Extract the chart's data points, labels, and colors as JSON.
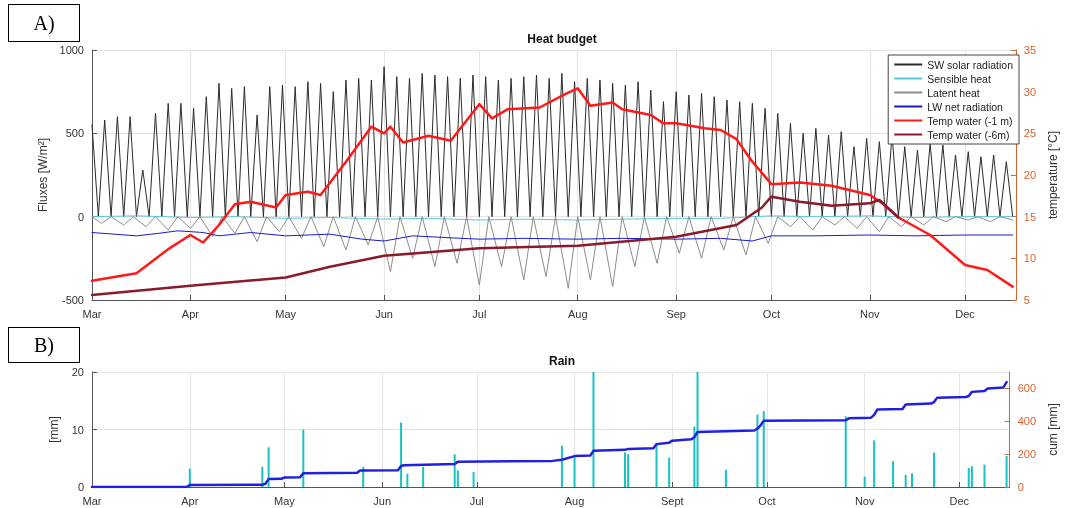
{
  "chart_data": [
    {
      "type": "line",
      "title": "Heat budget",
      "ylabel": "Fluxes [W/m²]",
      "y2label": "temperature [°C]",
      "xlim": [
        "--03-01",
        "--12-17"
      ],
      "xticks": [
        {
          "value": "--03-01",
          "label": "Mar"
        },
        {
          "value": "--04-01",
          "label": "Apr"
        },
        {
          "value": "--05-01",
          "label": "May"
        },
        {
          "value": "--06-01",
          "label": "Jun"
        },
        {
          "value": "--07-01",
          "label": "Jul"
        },
        {
          "value": "--08-01",
          "label": "Aug"
        },
        {
          "value": "--09-01",
          "label": "Sep"
        },
        {
          "value": "--10-01",
          "label": "Oct"
        },
        {
          "value": "--11-01",
          "label": "Nov"
        },
        {
          "value": "--12-01",
          "label": "Dec"
        }
      ],
      "ylim": [
        -500,
        1000
      ],
      "yticks": [
        -500,
        0,
        500,
        1000
      ],
      "y2lim": [
        5,
        35
      ],
      "y2ticks": [
        5,
        10,
        15,
        20,
        25,
        30,
        35
      ],
      "grid": true,
      "legend": "top right",
      "marker": "none",
      "annotations": [
        "A)"
      ],
      "series": [
        {
          "name": "SW solar radiation",
          "color": "#2b2b2b",
          "x": [
            "--03-01",
            "--03-03",
            "--03-05",
            "--03-07",
            "--03-09",
            "--03-11",
            "--03-13",
            "--03-15",
            "--03-17",
            "--03-19",
            "--03-21",
            "--03-23",
            "--03-25",
            "--03-27",
            "--03-29",
            "--03-31",
            "--04-02",
            "--04-04",
            "--04-06",
            "--04-08",
            "--04-10",
            "--04-12",
            "--04-14",
            "--04-16",
            "--04-18",
            "--04-20",
            "--04-22",
            "--04-24",
            "--04-26",
            "--04-28",
            "--04-30",
            "--05-02",
            "--05-04",
            "--05-06",
            "--05-08",
            "--05-10",
            "--05-12",
            "--05-14",
            "--05-16",
            "--05-18",
            "--05-20",
            "--05-22",
            "--05-24",
            "--05-26",
            "--05-28",
            "--05-30",
            "--06-01",
            "--06-03",
            "--06-05",
            "--06-07",
            "--06-09",
            "--06-11",
            "--06-13",
            "--06-15",
            "--06-17",
            "--06-19",
            "--06-21",
            "--06-23",
            "--06-25",
            "--06-27",
            "--06-29",
            "--07-01",
            "--07-03",
            "--07-05",
            "--07-07",
            "--07-09",
            "--07-11",
            "--07-13",
            "--07-15",
            "--07-17",
            "--07-19",
            "--07-21",
            "--07-23",
            "--07-25",
            "--07-27",
            "--07-29",
            "--07-31",
            "--08-02",
            "--08-04",
            "--08-06",
            "--08-08",
            "--08-10",
            "--08-12",
            "--08-14",
            "--08-16",
            "--08-18",
            "--08-20",
            "--08-22",
            "--08-24",
            "--08-26",
            "--08-28",
            "--08-30",
            "--09-01",
            "--09-03",
            "--09-05",
            "--09-07",
            "--09-09",
            "--09-11",
            "--09-13",
            "--09-15",
            "--09-17",
            "--09-19",
            "--09-21",
            "--09-23",
            "--09-25",
            "--09-27",
            "--09-29",
            "--10-01",
            "--10-03",
            "--10-05",
            "--10-07",
            "--10-09",
            "--10-11",
            "--10-13",
            "--10-15",
            "--10-17",
            "--10-19",
            "--10-21",
            "--10-23",
            "--10-25",
            "--10-27",
            "--10-29",
            "--10-31",
            "--11-02",
            "--11-04",
            "--11-06",
            "--11-08",
            "--11-10",
            "--11-12",
            "--11-14",
            "--11-16",
            "--11-18",
            "--11-20",
            "--11-22",
            "--11-24",
            "--11-26",
            "--11-28",
            "--11-30",
            "--12-02",
            "--12-04",
            "--12-06",
            "--12-08",
            "--12-10",
            "--12-12",
            "--12-14",
            "--12-16"
          ],
          "values": [
            550,
            0,
            580,
            0,
            600,
            0,
            600,
            0,
            280,
            0,
            620,
            0,
            680,
            0,
            680,
            0,
            650,
            0,
            720,
            0,
            800,
            0,
            770,
            0,
            780,
            0,
            610,
            0,
            780,
            0,
            790,
            0,
            780,
            0,
            810,
            0,
            800,
            0,
            750,
            0,
            820,
            0,
            830,
            0,
            820,
            0,
            900,
            0,
            840,
            0,
            830,
            0,
            860,
            0,
            850,
            0,
            840,
            0,
            830,
            0,
            850,
            0,
            840,
            0,
            820,
            0,
            830,
            0,
            840,
            0,
            850,
            0,
            830,
            0,
            860,
            0,
            810,
            0,
            830,
            0,
            820,
            0,
            800,
            0,
            790,
            0,
            810,
            0,
            760,
            0,
            690,
            0,
            750,
            0,
            730,
            0,
            740,
            0,
            720,
            0,
            700,
            0,
            690,
            0,
            680,
            0,
            650,
            0,
            620,
            0,
            560,
            0,
            500,
            0,
            530,
            0,
            490,
            0,
            510,
            0,
            420,
            0,
            470,
            0,
            450,
            0,
            490,
            0,
            420,
            0,
            400,
            0,
            440,
            0,
            430,
            0,
            370,
            0,
            390,
            0,
            360,
            0,
            370,
            0,
            330,
            0
          ]
        },
        {
          "name": "Sensible heat",
          "color": "#5bc8d8",
          "x": [
            "--03-01",
            "--03-15",
            "--04-01",
            "--04-15",
            "--05-01",
            "--05-15",
            "--06-01",
            "--06-15",
            "--07-01",
            "--07-15",
            "--08-01",
            "--08-15",
            "--09-01",
            "--09-15",
            "--10-01",
            "--10-15",
            "--11-01",
            "--11-15",
            "--12-01",
            "--12-16"
          ],
          "values": [
            0,
            5,
            -5,
            0,
            -10,
            -5,
            -15,
            -10,
            -20,
            -15,
            -20,
            -15,
            -10,
            -10,
            5,
            0,
            5,
            -5,
            0,
            0
          ]
        },
        {
          "name": "Latent heat",
          "color": "#8c8c8c",
          "x": [
            "--03-01",
            "--03-04",
            "--03-07",
            "--03-11",
            "--03-14",
            "--03-18",
            "--03-21",
            "--03-25",
            "--03-28",
            "--04-01",
            "--04-04",
            "--04-08",
            "--04-11",
            "--04-15",
            "--04-18",
            "--04-22",
            "--04-25",
            "--04-29",
            "--05-02",
            "--05-06",
            "--05-09",
            "--05-13",
            "--05-16",
            "--05-20",
            "--05-23",
            "--05-27",
            "--05-30",
            "--06-03",
            "--06-06",
            "--06-10",
            "--06-13",
            "--06-17",
            "--06-20",
            "--06-24",
            "--06-27",
            "--07-01",
            "--07-04",
            "--07-08",
            "--07-11",
            "--07-15",
            "--07-18",
            "--07-22",
            "--07-25",
            "--07-29",
            "--08-01",
            "--08-05",
            "--08-08",
            "--08-12",
            "--08-15",
            "--08-19",
            "--08-22",
            "--08-26",
            "--08-29",
            "--09-02",
            "--09-05",
            "--09-09",
            "--09-12",
            "--09-16",
            "--09-19",
            "--09-23",
            "--09-26",
            "--09-30",
            "--10-03",
            "--10-07",
            "--10-10",
            "--10-14",
            "--10-17",
            "--10-21",
            "--10-24",
            "--10-28",
            "--10-31",
            "--11-04",
            "--11-07",
            "--11-11",
            "--11-14",
            "--11-18",
            "--11-21",
            "--11-25",
            "--11-28",
            "--12-02",
            "--12-05",
            "--12-09",
            "--12-12",
            "--12-16"
          ],
          "values": [
            0,
            -40,
            0,
            -50,
            0,
            -60,
            0,
            -80,
            0,
            -70,
            0,
            -120,
            0,
            -100,
            0,
            -150,
            0,
            -90,
            0,
            -130,
            0,
            -180,
            0,
            -200,
            0,
            -170,
            0,
            -330,
            0,
            -250,
            0,
            -300,
            0,
            -280,
            0,
            -410,
            0,
            -300,
            0,
            -380,
            0,
            -360,
            0,
            -430,
            0,
            -380,
            0,
            -420,
            0,
            -300,
            0,
            -280,
            0,
            -220,
            0,
            -250,
            0,
            -200,
            0,
            -230,
            0,
            -160,
            0,
            -60,
            0,
            -80,
            0,
            -50,
            0,
            -70,
            0,
            -90,
            0,
            -60,
            0,
            -50,
            0,
            -30,
            0,
            -20,
            0,
            -30,
            0,
            -20
          ]
        },
        {
          "name": "LW net radiation",
          "color": "#1a1acc",
          "x": [
            "--03-01",
            "--03-08",
            "--03-15",
            "--03-22",
            "--03-28",
            "--04-05",
            "--04-10",
            "--04-20",
            "--05-01",
            "--05-15",
            "--05-25",
            "--06-01",
            "--06-10",
            "--06-20",
            "--07-01",
            "--07-15",
            "--08-01",
            "--08-15",
            "--09-01",
            "--09-15",
            "--09-25",
            "--10-01",
            "--10-15",
            "--11-01",
            "--11-15",
            "--12-01",
            "--12-16"
          ],
          "values": [
            -95,
            -105,
            -115,
            -100,
            -85,
            -95,
            -115,
            -95,
            -115,
            -105,
            -135,
            -146,
            -115,
            -125,
            -135,
            -130,
            -135,
            -130,
            -135,
            -130,
            -146,
            -115,
            -115,
            -110,
            -115,
            -110,
            -110
          ]
        },
        {
          "name": "Temp water (-1 m)",
          "color": "#ff1a1a",
          "axis": "y2",
          "x": [
            "--03-01",
            "--03-15",
            "--03-25",
            "--04-01",
            "--04-05",
            "--04-10",
            "--04-15",
            "--04-20",
            "--04-28",
            "--05-01",
            "--05-08",
            "--05-12",
            "--05-20",
            "--05-28",
            "--06-01",
            "--06-03",
            "--06-07",
            "--06-15",
            "--06-22",
            "--07-01",
            "--07-05",
            "--07-10",
            "--07-20",
            "--07-28",
            "--08-01",
            "--08-05",
            "--08-12",
            "--08-15",
            "--08-24",
            "--08-28",
            "--09-01",
            "--09-10",
            "--09-15",
            "--09-20",
            "--09-25",
            "--10-01",
            "--10-10",
            "--10-20",
            "--11-01",
            "--11-05",
            "--11-10",
            "--11-20",
            "--12-01",
            "--12-08",
            "--12-16"
          ],
          "values": [
            7.3,
            8.2,
            11.1,
            12.8,
            11.9,
            14,
            16.5,
            16.8,
            16.1,
            17.6,
            18,
            17.6,
            21.6,
            25.8,
            25,
            25.8,
            23.9,
            24.7,
            24.1,
            28.5,
            26.8,
            27.9,
            28.1,
            29.7,
            30.4,
            28.3,
            28.7,
            27.9,
            27.2,
            26.2,
            26.2,
            25.6,
            25.4,
            24.3,
            21.6,
            18.9,
            19.1,
            18.7,
            17.6,
            16.6,
            14.9,
            12.8,
            9.2,
            8.6,
            6.6
          ]
        },
        {
          "name": "Temp water (-6m)",
          "color": "#8b1a2a",
          "axis": "y2",
          "x": [
            "--03-01",
            "--04-01",
            "--05-01",
            "--05-15",
            "--06-01",
            "--07-01",
            "--08-01",
            "--09-01",
            "--09-20",
            "--09-28",
            "--10-01",
            "--10-10",
            "--10-20",
            "--11-01",
            "--11-04",
            "--11-10"
          ],
          "values": [
            5.6,
            6.7,
            7.7,
            9,
            10.3,
            11.2,
            11.5,
            12.6,
            14,
            16.1,
            17.4,
            16.8,
            16.3,
            16.6,
            17,
            14.9
          ]
        }
      ]
    },
    {
      "type": "bar",
      "title": "Rain",
      "ylabel": "[mm]",
      "y2label": "cum [mm]",
      "xlim": [
        "--03-01",
        "--12-17"
      ],
      "xticks": [
        {
          "value": "--03-01",
          "label": "Mar"
        },
        {
          "value": "--04-01",
          "label": "Apr"
        },
        {
          "value": "--05-01",
          "label": "May"
        },
        {
          "value": "--06-01",
          "label": "Jun"
        },
        {
          "value": "--07-01",
          "label": "Jul"
        },
        {
          "value": "--08-01",
          "label": "Aug"
        },
        {
          "value": "--09-01",
          "label": "Sept"
        },
        {
          "value": "--10-01",
          "label": "Oct"
        },
        {
          "value": "--11-01",
          "label": "Nov"
        },
        {
          "value": "--12-01",
          "label": "Dec"
        }
      ],
      "ylim": [
        0,
        20
      ],
      "yticks": [
        0,
        10,
        20
      ],
      "y2lim": [
        0,
        700
      ],
      "y2ticks": [
        0,
        200,
        400,
        600
      ],
      "grid": true,
      "marker": "none",
      "annotations": [
        "B)"
      ],
      "series": [
        {
          "color": "#19c3c3",
          "x": [
            "--04-01",
            "--04-24",
            "--04-26",
            "--05-07",
            "--05-26",
            "--06-07",
            "--06-09",
            "--06-14",
            "--06-24",
            "--06-25",
            "--06-30",
            "--07-28",
            "--08-01",
            "--08-07",
            "--08-17",
            "--08-18",
            "--08-27",
            "--08-31",
            "--09-08",
            "--09-09",
            "--09-18",
            "--09-28",
            "--09-30",
            "--10-26",
            "--11-01",
            "--11-04",
            "--11-10",
            "--11-14",
            "--11-16",
            "--11-23",
            "--12-04",
            "--12-05",
            "--12-09",
            "--12-16"
          ],
          "values": [
            3.2,
            3.5,
            6.9,
            10,
            3.5,
            11.2,
            2.3,
            3.5,
            5.7,
            2.9,
            2.6,
            7.2,
            5.4,
            20,
            6,
            5.7,
            7.5,
            5.1,
            10.5,
            20,
            3,
            12.6,
            13.2,
            12.3,
            1.8,
            8.1,
            4.5,
            2.1,
            2.4,
            6,
            3.3,
            3.6,
            3.9,
            5.4
          ]
        },
        {
          "type": "line",
          "color": "#2020e0",
          "axis": "y2",
          "x": [
            "--03-01",
            "--03-31",
            "--04-01",
            "--04-24",
            "--04-25",
            "--04-26",
            "--04-30",
            "--05-01",
            "--05-06",
            "--05-07",
            "--05-24",
            "--05-25",
            "--06-06",
            "--06-07",
            "--06-08",
            "--06-24",
            "--06-25",
            "--07-25",
            "--07-28",
            "--08-01",
            "--08-06",
            "--08-07",
            "--08-17",
            "--08-18",
            "--08-26",
            "--08-27",
            "--08-31",
            "--09-01",
            "--09-07",
            "--09-08",
            "--09-09",
            "--09-27",
            "--09-28",
            "--09-29",
            "--09-30",
            "--10-26",
            "--10-27",
            "--11-03",
            "--11-04",
            "--11-05",
            "--11-13",
            "--11-14",
            "--11-22",
            "--11-23",
            "--11-24",
            "--12-03",
            "--12-04",
            "--12-05",
            "--12-09",
            "--12-10",
            "--12-15",
            "--12-16"
          ],
          "values": [
            0,
            0,
            12,
            14,
            20,
            48,
            50,
            58,
            60,
            84,
            86,
            100,
            102,
            128,
            132,
            140,
            153,
            159,
            166,
            188,
            192,
            220,
            226,
            232,
            236,
            261,
            270,
            282,
            290,
            303,
            335,
            344,
            356,
            375,
            404,
            406,
            418,
            422,
            439,
            471,
            475,
            502,
            508,
            517,
            544,
            548,
            554,
            579,
            585,
            600,
            606,
            638
          ]
        }
      ]
    }
  ]
}
